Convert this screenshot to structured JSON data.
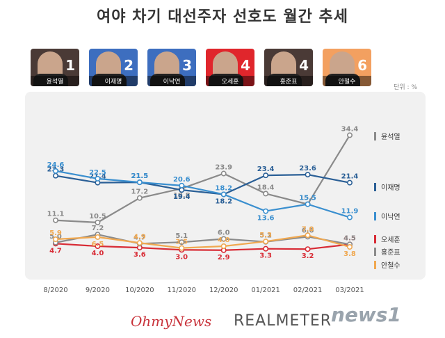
{
  "title": "여야 차기 대선주자 선호도 월간 추세",
  "unit_label": "단위 : %",
  "cards": [
    {
      "name": "윤석열",
      "rank": "1",
      "color": "#4a3a36"
    },
    {
      "name": "이재명",
      "rank": "2",
      "color": "#3d6ebf"
    },
    {
      "name": "이낙연",
      "rank": "3",
      "color": "#3d6ebf"
    },
    {
      "name": "오세훈",
      "rank": "4",
      "color": "#e0262c"
    },
    {
      "name": "홍준표",
      "rank": "4",
      "color": "#4a3a36"
    },
    {
      "name": "안철수",
      "rank": "6",
      "color": "#f3a060"
    }
  ],
  "footer": {
    "ohmynews": "OhmyNews",
    "realmeter": "REALMETER",
    "news1": "news1"
  },
  "chart_data": {
    "type": "line",
    "categories": [
      "8/2020",
      "9/2020",
      "10/2020",
      "11/2020",
      "12/2020",
      "01/2021",
      "02/2021",
      "03/2021"
    ],
    "ylim": [
      0,
      36
    ],
    "series": [
      {
        "name": "윤석열",
        "color": "#8a8a8a",
        "values": [
          11.1,
          10.5,
          17.2,
          19.8,
          23.9,
          18.4,
          15.5,
          34.4
        ],
        "labels": [
          "11.1",
          "10.5",
          "17.2",
          "19.8",
          "23.9",
          "18.4",
          "15.5",
          "34.4"
        ],
        "label_pos": [
          "above",
          "above",
          "above",
          "below",
          "above",
          "above",
          "above",
          "above"
        ]
      },
      {
        "name": "이재명",
        "color": "#2a5f96",
        "values": [
          23.3,
          21.4,
          21.5,
          19.4,
          18.2,
          23.4,
          23.6,
          21.4
        ],
        "labels": [
          "23.3",
          "21.4",
          "21.5",
          "19.4",
          "18.2",
          "23.4",
          "23.6",
          "21.4"
        ],
        "label_pos": [
          "above",
          "above",
          "above",
          "below",
          "below",
          "above",
          "above",
          "above"
        ]
      },
      {
        "name": "이낙연",
        "color": "#3a8fcf",
        "values": [
          24.6,
          22.5,
          21.5,
          20.6,
          18.2,
          13.6,
          15.5,
          11.9
        ],
        "labels": [
          "24.6",
          "22.5",
          "21.5",
          "20.6",
          "18.2",
          "13.6",
          "15.5",
          "11.9"
        ],
        "label_pos": [
          "above",
          "above",
          "above",
          "above",
          "above",
          "below",
          "above",
          "above"
        ]
      },
      {
        "name": "오세훈",
        "color": "#d82b35",
        "values": [
          4.7,
          4.0,
          3.6,
          3.0,
          2.9,
          3.3,
          3.2,
          4.5
        ],
        "labels": [
          "4.7",
          "4.0",
          "3.6",
          "3.0",
          "2.9",
          "3.3",
          "3.2",
          "4.5"
        ],
        "label_pos": [
          "below",
          "below",
          "below",
          "below",
          "below",
          "below",
          "below",
          "above"
        ]
      },
      {
        "name": "홍준표",
        "color": "#8a8a8a",
        "values": [
          5.0,
          7.2,
          4.7,
          5.1,
          6.0,
          5.2,
          6.6,
          4.5
        ],
        "labels": [
          "5.0",
          "7.2",
          "4.7",
          "5.1",
          "6.0",
          "5.2",
          "6.6",
          "4.5"
        ],
        "label_pos": [
          "above",
          "above",
          "above",
          "above",
          "above",
          "above",
          "above",
          "above"
        ]
      },
      {
        "name": "안철수",
        "color": "#f0a850",
        "values": [
          5.9,
          6.5,
          4.9,
          3.5,
          4.0,
          5.3,
          7.0,
          3.8
        ],
        "labels": [
          "5.9",
          "6.5",
          "4.9",
          "3.5",
          "4.0",
          "5.3",
          "7.0",
          "3.8"
        ],
        "label_pos": [
          "above",
          "below",
          "above",
          "above",
          "above",
          "above",
          "above",
          "below"
        ]
      }
    ],
    "legend_order": [
      "윤석열",
      "이재명",
      "이낙연",
      "오세훈",
      "홍준표",
      "안철수"
    ],
    "grid": false,
    "legend_position": "right"
  }
}
